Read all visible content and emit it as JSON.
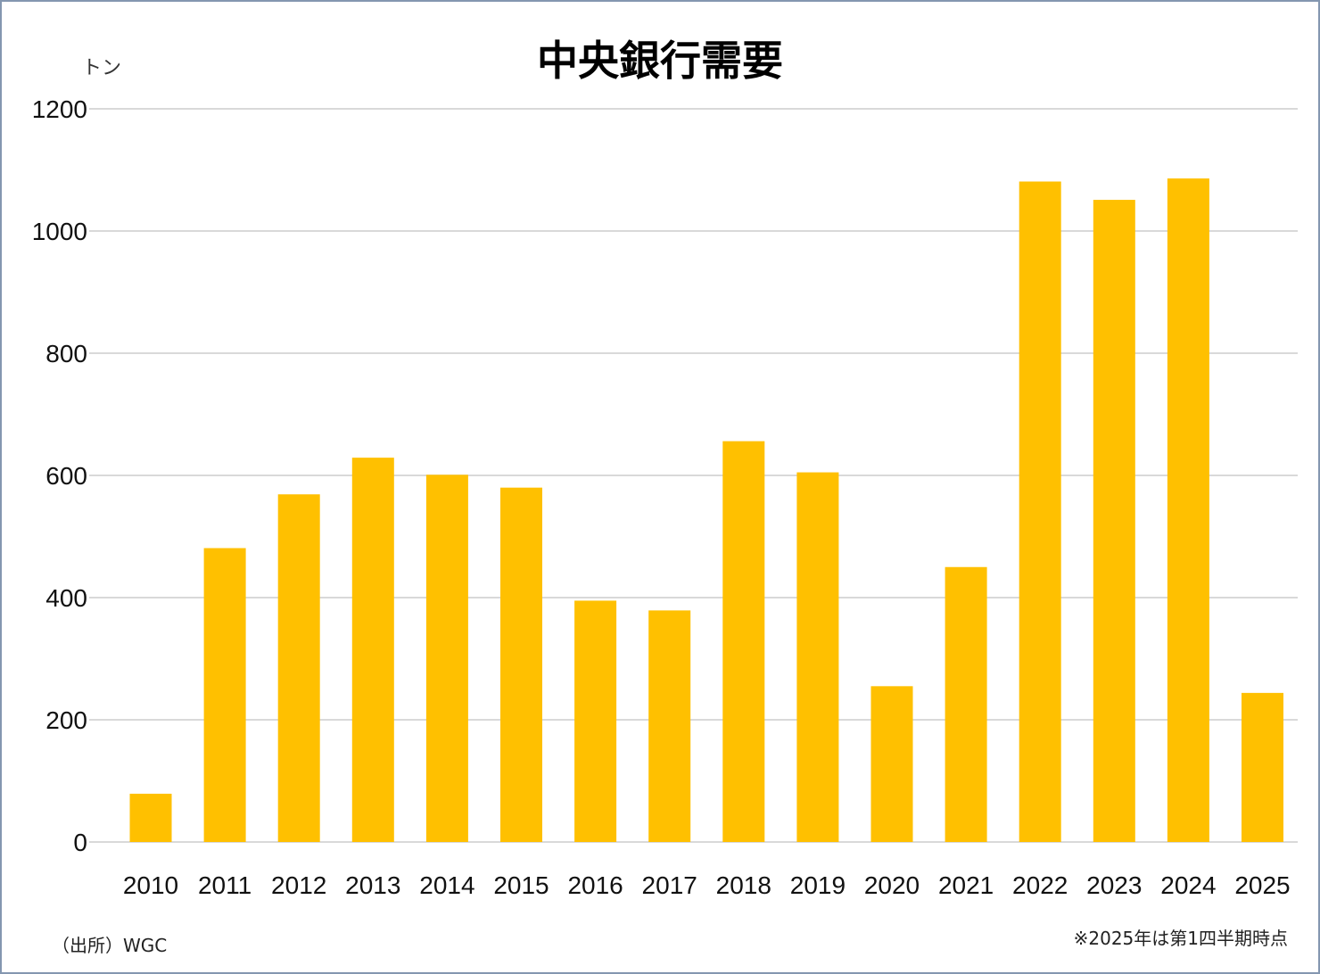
{
  "chart_data": {
    "type": "bar",
    "title": "中央銀行需要",
    "unit_label": "トン",
    "categories": [
      "2010",
      "2011",
      "2012",
      "2013",
      "2014",
      "2015",
      "2016",
      "2017",
      "2018",
      "2019",
      "2020",
      "2021",
      "2022",
      "2023",
      "2024",
      "2025"
    ],
    "series": [
      {
        "values": [
          79,
          481,
          569,
          629,
          601,
          580,
          395,
          379,
          656,
          605,
          255,
          450,
          1081,
          1051,
          1086,
          244
        ]
      }
    ],
    "ylim": [
      0,
      1200
    ],
    "yticks": [
      0,
      200,
      400,
      600,
      800,
      1000,
      1200
    ],
    "grid": true,
    "bar_color": "#ffc000",
    "grid_color": "#d9d9d9"
  },
  "footer": {
    "source": "（出所）WGC",
    "note": "※2025年は第1四半期時点"
  }
}
